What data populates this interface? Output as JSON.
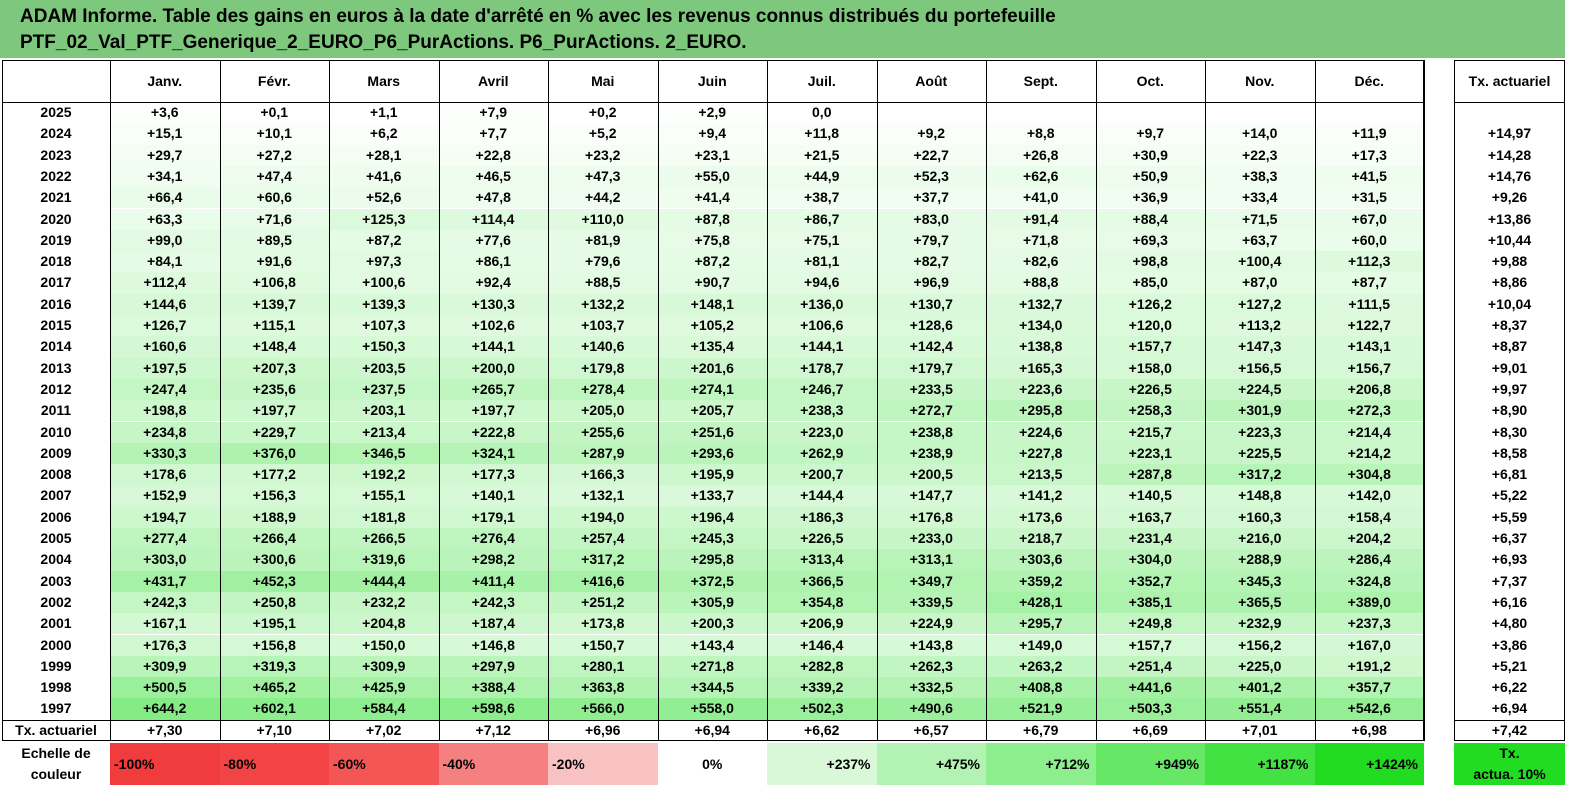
{
  "title": {
    "line1": "ADAM Informe. Table des gains en euros à la date d'arrêté en % avec les revenus connus distribués du portefeuille",
    "line2": "PTF_02_Val_PTF_Generique_2_EURO_P6_PurActions. P6_PurActions. 2_EURO."
  },
  "table": {
    "months": [
      "Janv.",
      "Févr.",
      "Mars",
      "Avril",
      "Mai",
      "Juin",
      "Juil.",
      "Août",
      "Sept.",
      "Oct.",
      "Nov.",
      "Déc."
    ],
    "rate_header": "Tx. actuariel",
    "rows": [
      {
        "year": "2025",
        "values": [
          "+3,6",
          "+0,1",
          "+1,1",
          "+7,9",
          "+0,2",
          "+2,9",
          "0,0",
          "",
          "",
          "",
          "",
          ""
        ],
        "rate": ""
      },
      {
        "year": "2024",
        "values": [
          "+15,1",
          "+10,1",
          "+6,2",
          "+7,7",
          "+5,2",
          "+9,4",
          "+11,8",
          "+9,2",
          "+8,8",
          "+9,7",
          "+14,0",
          "+11,9"
        ],
        "rate": "+14,97"
      },
      {
        "year": "2023",
        "values": [
          "+29,7",
          "+27,2",
          "+28,1",
          "+22,8",
          "+23,2",
          "+23,1",
          "+21,5",
          "+22,7",
          "+26,8",
          "+30,9",
          "+22,3",
          "+17,3"
        ],
        "rate": "+14,28"
      },
      {
        "year": "2022",
        "values": [
          "+34,1",
          "+47,4",
          "+41,6",
          "+46,5",
          "+47,3",
          "+55,0",
          "+44,9",
          "+52,3",
          "+62,6",
          "+50,9",
          "+38,3",
          "+41,5"
        ],
        "rate": "+14,76"
      },
      {
        "year": "2021",
        "values": [
          "+66,4",
          "+60,6",
          "+52,6",
          "+47,8",
          "+44,2",
          "+41,4",
          "+38,7",
          "+37,7",
          "+41,0",
          "+36,9",
          "+33,4",
          "+31,5"
        ],
        "rate": "+9,26"
      },
      {
        "year": "2020",
        "values": [
          "+63,3",
          "+71,6",
          "+125,3",
          "+114,4",
          "+110,0",
          "+87,8",
          "+86,7",
          "+83,0",
          "+91,4",
          "+88,4",
          "+71,5",
          "+67,0"
        ],
        "rate": "+13,86"
      },
      {
        "year": "2019",
        "values": [
          "+99,0",
          "+89,5",
          "+87,2",
          "+77,6",
          "+81,9",
          "+75,8",
          "+75,1",
          "+79,7",
          "+71,8",
          "+69,3",
          "+63,7",
          "+60,0"
        ],
        "rate": "+10,44"
      },
      {
        "year": "2018",
        "values": [
          "+84,1",
          "+91,6",
          "+97,3",
          "+86,1",
          "+79,6",
          "+87,2",
          "+81,1",
          "+82,7",
          "+82,6",
          "+98,8",
          "+100,4",
          "+112,3"
        ],
        "rate": "+9,88"
      },
      {
        "year": "2017",
        "values": [
          "+112,4",
          "+106,8",
          "+100,6",
          "+92,4",
          "+88,5",
          "+90,7",
          "+94,6",
          "+96,9",
          "+88,8",
          "+85,0",
          "+87,0",
          "+87,7"
        ],
        "rate": "+8,86"
      },
      {
        "year": "2016",
        "values": [
          "+144,6",
          "+139,7",
          "+139,3",
          "+130,3",
          "+132,2",
          "+148,1",
          "+136,0",
          "+130,7",
          "+132,7",
          "+126,2",
          "+127,2",
          "+111,5"
        ],
        "rate": "+10,04"
      },
      {
        "year": "2015",
        "values": [
          "+126,7",
          "+115,1",
          "+107,3",
          "+102,6",
          "+103,7",
          "+105,2",
          "+106,6",
          "+128,6",
          "+134,0",
          "+120,0",
          "+113,2",
          "+122,7"
        ],
        "rate": "+8,37"
      },
      {
        "year": "2014",
        "values": [
          "+160,6",
          "+148,4",
          "+150,3",
          "+144,1",
          "+140,6",
          "+135,4",
          "+144,1",
          "+142,4",
          "+138,8",
          "+157,7",
          "+147,3",
          "+143,1"
        ],
        "rate": "+8,87"
      },
      {
        "year": "2013",
        "values": [
          "+197,5",
          "+207,3",
          "+203,5",
          "+200,0",
          "+179,8",
          "+201,6",
          "+178,7",
          "+179,7",
          "+165,3",
          "+158,0",
          "+156,5",
          "+156,7"
        ],
        "rate": "+9,01"
      },
      {
        "year": "2012",
        "values": [
          "+247,4",
          "+235,6",
          "+237,5",
          "+265,7",
          "+278,4",
          "+274,1",
          "+246,7",
          "+233,5",
          "+223,6",
          "+226,5",
          "+224,5",
          "+206,8"
        ],
        "rate": "+9,97"
      },
      {
        "year": "2011",
        "values": [
          "+198,8",
          "+197,7",
          "+203,1",
          "+197,7",
          "+205,0",
          "+205,7",
          "+238,3",
          "+272,7",
          "+295,8",
          "+258,3",
          "+301,9",
          "+272,3"
        ],
        "rate": "+8,90"
      },
      {
        "year": "2010",
        "values": [
          "+234,8",
          "+229,7",
          "+213,4",
          "+222,8",
          "+255,6",
          "+251,6",
          "+223,0",
          "+238,8",
          "+224,6",
          "+215,7",
          "+223,3",
          "+214,4"
        ],
        "rate": "+8,30"
      },
      {
        "year": "2009",
        "values": [
          "+330,3",
          "+376,0",
          "+346,5",
          "+324,1",
          "+287,9",
          "+293,6",
          "+262,9",
          "+238,9",
          "+227,8",
          "+223,1",
          "+225,5",
          "+214,2"
        ],
        "rate": "+8,58"
      },
      {
        "year": "2008",
        "values": [
          "+178,6",
          "+177,2",
          "+192,2",
          "+177,3",
          "+166,3",
          "+195,9",
          "+200,7",
          "+200,5",
          "+213,5",
          "+287,8",
          "+317,2",
          "+304,8"
        ],
        "rate": "+6,81"
      },
      {
        "year": "2007",
        "values": [
          "+152,9",
          "+156,3",
          "+155,1",
          "+140,1",
          "+132,1",
          "+133,7",
          "+144,4",
          "+147,7",
          "+141,2",
          "+140,5",
          "+148,8",
          "+142,0"
        ],
        "rate": "+5,22"
      },
      {
        "year": "2006",
        "values": [
          "+194,7",
          "+188,9",
          "+181,8",
          "+179,1",
          "+194,0",
          "+196,4",
          "+186,3",
          "+176,8",
          "+173,6",
          "+163,7",
          "+160,3",
          "+158,4"
        ],
        "rate": "+5,59"
      },
      {
        "year": "2005",
        "values": [
          "+277,4",
          "+266,4",
          "+266,5",
          "+276,4",
          "+257,4",
          "+245,3",
          "+226,5",
          "+233,0",
          "+218,7",
          "+231,4",
          "+216,0",
          "+204,2"
        ],
        "rate": "+6,37"
      },
      {
        "year": "2004",
        "values": [
          "+303,0",
          "+300,6",
          "+319,6",
          "+298,2",
          "+317,2",
          "+295,8",
          "+313,4",
          "+313,1",
          "+303,6",
          "+304,0",
          "+288,9",
          "+286,4"
        ],
        "rate": "+6,93"
      },
      {
        "year": "2003",
        "values": [
          "+431,7",
          "+452,3",
          "+444,4",
          "+411,4",
          "+416,6",
          "+372,5",
          "+366,5",
          "+349,7",
          "+359,2",
          "+352,7",
          "+345,3",
          "+324,8"
        ],
        "rate": "+7,37"
      },
      {
        "year": "2002",
        "values": [
          "+242,3",
          "+250,8",
          "+232,2",
          "+242,3",
          "+251,2",
          "+305,9",
          "+354,8",
          "+339,5",
          "+428,1",
          "+385,1",
          "+365,5",
          "+389,0"
        ],
        "rate": "+6,16"
      },
      {
        "year": "2001",
        "values": [
          "+167,1",
          "+195,1",
          "+204,8",
          "+187,4",
          "+173,8",
          "+200,3",
          "+206,9",
          "+224,9",
          "+295,7",
          "+249,8",
          "+232,9",
          "+237,3"
        ],
        "rate": "+4,80"
      },
      {
        "year": "2000",
        "values": [
          "+176,3",
          "+156,8",
          "+150,0",
          "+146,8",
          "+150,7",
          "+143,4",
          "+146,4",
          "+143,8",
          "+149,0",
          "+157,7",
          "+156,2",
          "+167,0"
        ],
        "rate": "+3,86"
      },
      {
        "year": "1999",
        "values": [
          "+309,9",
          "+319,3",
          "+309,9",
          "+297,9",
          "+280,1",
          "+271,8",
          "+282,8",
          "+262,3",
          "+263,2",
          "+251,4",
          "+225,0",
          "+191,2"
        ],
        "rate": "+5,21"
      },
      {
        "year": "1998",
        "values": [
          "+500,5",
          "+465,2",
          "+425,9",
          "+388,4",
          "+363,8",
          "+344,5",
          "+339,2",
          "+332,5",
          "+408,8",
          "+441,6",
          "+401,2",
          "+357,7"
        ],
        "rate": "+6,22"
      },
      {
        "year": "1997",
        "values": [
          "+644,2",
          "+602,1",
          "+584,4",
          "+598,6",
          "+566,0",
          "+558,0",
          "+502,3",
          "+490,6",
          "+521,9",
          "+503,3",
          "+551,4",
          "+542,6"
        ],
        "rate": "+6,94"
      }
    ],
    "footer": {
      "label": "Tx. actuariel",
      "values": [
        "+7,30",
        "+7,10",
        "+7,02",
        "+7,12",
        "+6,96",
        "+6,94",
        "+6,62",
        "+6,57",
        "+6,79",
        "+6,69",
        "+7,01",
        "+6,98"
      ],
      "rate": "+7,42"
    }
  },
  "legend": {
    "label_line1": "Echelle de",
    "label_line2": "couleur",
    "items": [
      {
        "text": "-100%",
        "color": "#f03c3c",
        "align": "left"
      },
      {
        "text": "-80%",
        "color": "#f24444",
        "align": "left"
      },
      {
        "text": "-60%",
        "color": "#f45656",
        "align": "left"
      },
      {
        "text": "-40%",
        "color": "#f58080",
        "align": "left"
      },
      {
        "text": "-20%",
        "color": "#f9c2c2",
        "align": "left"
      },
      {
        "text": "0%",
        "color": "#ffffff",
        "align": "center"
      },
      {
        "text": "+237%",
        "color": "#d8f8d8",
        "align": "right"
      },
      {
        "text": "+475%",
        "color": "#b2f2b2",
        "align": "right"
      },
      {
        "text": "+712%",
        "color": "#8cee8c",
        "align": "right"
      },
      {
        "text": "+949%",
        "color": "#66e866",
        "align": "right"
      },
      {
        "text": "+1187%",
        "color": "#42e242",
        "align": "right"
      },
      {
        "text": "+1424%",
        "color": "#22dc22",
        "align": "right"
      }
    ],
    "rate_line1": "Tx.",
    "rate_line2": "actua. 10%",
    "rate_color": "#22dc22"
  },
  "colors": {
    "header_bg": "#7ec87e",
    "scale_max_green": "#22dc22",
    "scale_zero": "#ffffff"
  }
}
